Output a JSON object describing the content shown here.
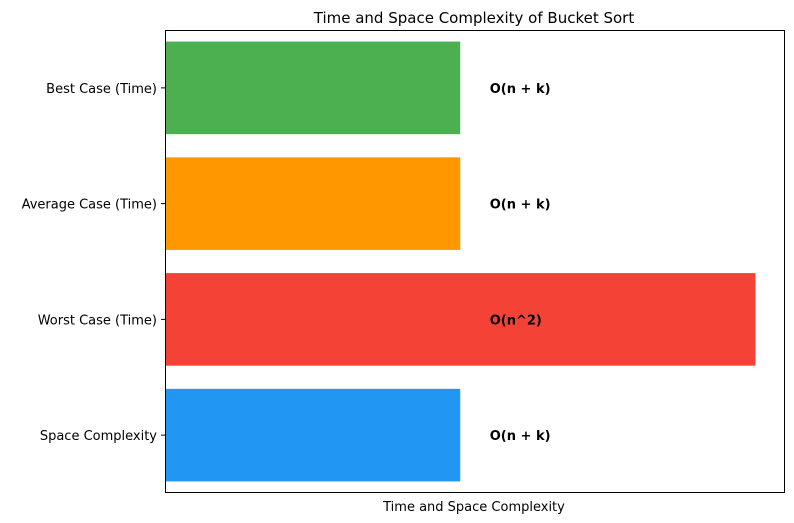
{
  "chart_data": {
    "type": "bar",
    "orientation": "horizontal",
    "title": "Time and Space Complexity of Bucket Sort",
    "xlabel": "Time and Space Complexity",
    "ylabel": "",
    "xlim": [
      0,
      2.1
    ],
    "xticks_visible": false,
    "grid": false,
    "legend": "none",
    "categories": [
      "Best Case (Time)",
      "Average Case (Time)",
      "Worst Case (Time)",
      "Space Complexity"
    ],
    "values": [
      1,
      1,
      2,
      1
    ],
    "labels": [
      "O(n + k)",
      "O(n + k)",
      "O(n^2)",
      "O(n + k)"
    ],
    "colors": [
      "#4caf50",
      "#ff9800",
      "#f44336",
      "#2196f3"
    ]
  }
}
